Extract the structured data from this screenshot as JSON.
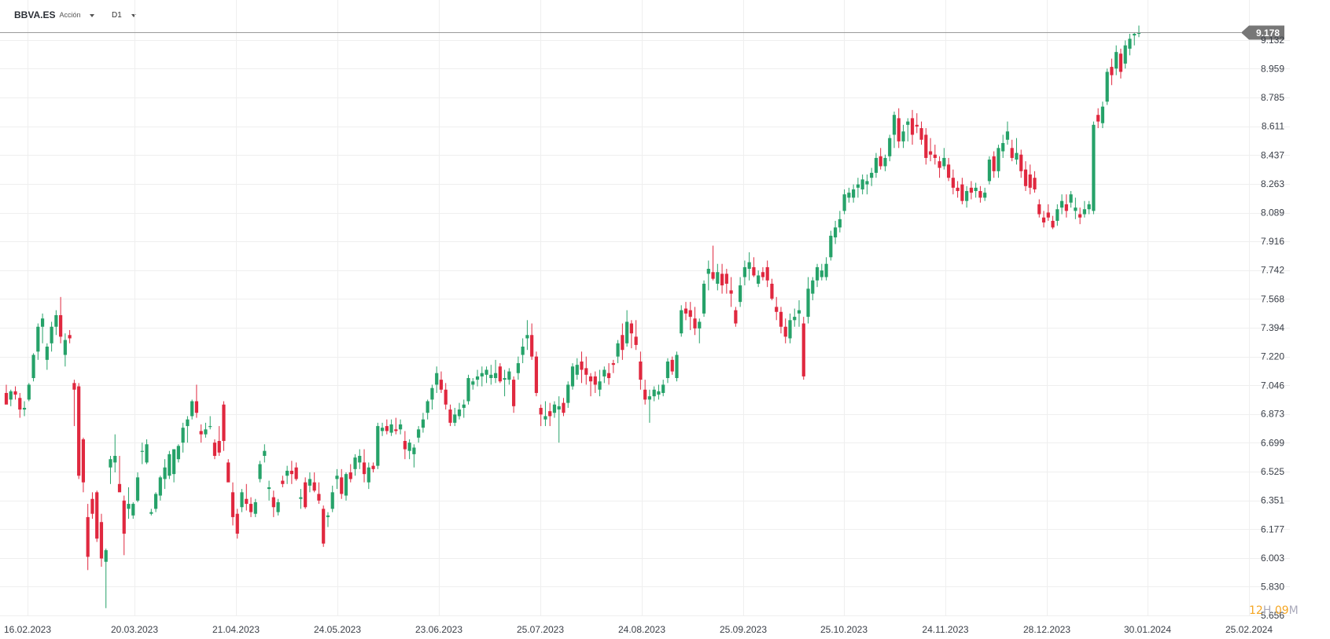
{
  "toolbar": {
    "symbol": "BBVA.ES",
    "asset_type": "Acción",
    "timeframe": "D1"
  },
  "countdown": {
    "hours": "12",
    "hours_unit": "H",
    "minutes": "09",
    "minutes_unit": "M"
  },
  "colors": {
    "up": "#26a269",
    "down": "#e0283f",
    "grid": "#efefef",
    "price_line": "#9a9a9a",
    "price_badge": "#777777"
  },
  "chart_data": {
    "type": "candlestick",
    "symbol": "BBVA.ES",
    "timeframe": "D1",
    "ylim": [
      5.656,
      9.22
    ],
    "y_ticks": [
      "9.132",
      "8.959",
      "8.785",
      "8.611",
      "8.437",
      "8.263",
      "8.089",
      "7.916",
      "7.742",
      "7.568",
      "7.394",
      "7.220",
      "7.046",
      "6.873",
      "6.699",
      "6.525",
      "6.351",
      "6.177",
      "6.003",
      "5.830",
      "5.656"
    ],
    "x_ticks": [
      "16.02.2023",
      "20.03.2023",
      "21.04.2023",
      "24.05.2023",
      "23.06.2023",
      "25.07.2023",
      "24.08.2023",
      "25.09.2023",
      "25.10.2023",
      "24.11.2023",
      "28.12.2023",
      "30.01.2024",
      "25.02.2024"
    ],
    "current_price": "9.178",
    "grid": true,
    "candles": [
      [
        7.0,
        7.05,
        6.94,
        6.93
      ],
      [
        6.96,
        7.02,
        6.92,
        7.01
      ],
      [
        7.01,
        7.04,
        6.96,
        6.99
      ],
      [
        6.97,
        7.0,
        6.85,
        6.9
      ],
      [
        6.9,
        6.95,
        6.86,
        6.91
      ],
      [
        6.96,
        7.06,
        6.95,
        7.05
      ],
      [
        7.09,
        7.24,
        7.07,
        7.23
      ],
      [
        7.25,
        7.42,
        7.2,
        7.4
      ],
      [
        7.4,
        7.48,
        7.3,
        7.45
      ],
      [
        7.2,
        7.3,
        7.14,
        7.28
      ],
      [
        7.3,
        7.43,
        7.25,
        7.4
      ],
      [
        7.4,
        7.5,
        7.35,
        7.47
      ],
      [
        7.47,
        7.58,
        7.3,
        7.34
      ],
      [
        7.23,
        7.36,
        7.16,
        7.32
      ],
      [
        7.35,
        7.38,
        7.3,
        7.33
      ],
      [
        7.06,
        7.08,
        6.8,
        7.02
      ],
      [
        7.04,
        7.06,
        6.48,
        6.5
      ],
      [
        6.72,
        6.73,
        6.4,
        6.46
      ],
      [
        6.25,
        6.33,
        5.93,
        6.01
      ],
      [
        6.36,
        6.4,
        6.24,
        6.27
      ],
      [
        6.4,
        6.41,
        6.1,
        6.12
      ],
      [
        6.22,
        6.27,
        5.95,
        6.0
      ],
      [
        5.98,
        6.06,
        5.7,
        6.05
      ],
      [
        6.55,
        6.62,
        6.45,
        6.6
      ],
      [
        6.58,
        6.75,
        6.52,
        6.62
      ],
      [
        6.45,
        6.62,
        6.42,
        6.4
      ],
      [
        6.35,
        6.38,
        6.02,
        6.15
      ],
      [
        6.3,
        6.43,
        6.24,
        6.33
      ],
      [
        6.26,
        6.34,
        6.24,
        6.33
      ],
      [
        6.35,
        6.52,
        6.34,
        6.49
      ],
      [
        6.65,
        6.7,
        6.57,
        6.65
      ],
      [
        6.58,
        6.72,
        6.57,
        6.69
      ],
      [
        6.27,
        6.3,
        6.26,
        6.28
      ],
      [
        6.3,
        6.4,
        6.28,
        6.39
      ],
      [
        6.38,
        6.5,
        6.35,
        6.49
      ],
      [
        6.48,
        6.6,
        6.42,
        6.55
      ],
      [
        6.5,
        6.65,
        6.48,
        6.63
      ],
      [
        6.51,
        6.66,
        6.46,
        6.66
      ],
      [
        6.6,
        6.69,
        6.58,
        6.68
      ],
      [
        6.7,
        6.82,
        6.64,
        6.79
      ],
      [
        6.8,
        6.86,
        6.7,
        6.84
      ],
      [
        6.86,
        6.96,
        6.84,
        6.95
      ],
      [
        6.95,
        7.05,
        6.85,
        6.88
      ],
      [
        6.77,
        6.81,
        6.7,
        6.75
      ],
      [
        6.75,
        6.82,
        6.73,
        6.78
      ],
      [
        6.8,
        6.86,
        6.78,
        6.8
      ],
      [
        6.7,
        6.72,
        6.6,
        6.62
      ],
      [
        6.71,
        6.8,
        6.62,
        6.64
      ],
      [
        6.93,
        6.95,
        6.65,
        6.71
      ],
      [
        6.58,
        6.6,
        6.48,
        6.46
      ],
      [
        6.4,
        6.46,
        6.2,
        6.25
      ],
      [
        6.27,
        6.3,
        6.12,
        6.15
      ],
      [
        6.31,
        6.42,
        6.28,
        6.4
      ],
      [
        6.36,
        6.45,
        6.29,
        6.33
      ],
      [
        6.33,
        6.37,
        6.25,
        6.28
      ],
      [
        6.27,
        6.36,
        6.25,
        6.34
      ],
      [
        6.48,
        6.59,
        6.46,
        6.57
      ],
      [
        6.62,
        6.69,
        6.58,
        6.65
      ],
      [
        6.42,
        6.47,
        6.35,
        6.43
      ],
      [
        6.37,
        6.41,
        6.25,
        6.31
      ],
      [
        6.28,
        6.36,
        6.26,
        6.34
      ],
      [
        6.47,
        6.5,
        6.43,
        6.45
      ],
      [
        6.5,
        6.56,
        6.45,
        6.53
      ],
      [
        6.53,
        6.59,
        6.45,
        6.51
      ],
      [
        6.55,
        6.58,
        6.47,
        6.48
      ],
      [
        6.36,
        6.42,
        6.3,
        6.37
      ],
      [
        6.46,
        6.49,
        6.3,
        6.31
      ],
      [
        6.44,
        6.52,
        6.4,
        6.48
      ],
      [
        6.46,
        6.52,
        6.4,
        6.41
      ],
      [
        6.39,
        6.46,
        6.33,
        6.35
      ],
      [
        6.3,
        6.32,
        6.07,
        6.09
      ],
      [
        6.25,
        6.28,
        6.19,
        6.26
      ],
      [
        6.3,
        6.44,
        6.28,
        6.4
      ],
      [
        6.48,
        6.54,
        6.42,
        6.5
      ],
      [
        6.49,
        6.54,
        6.36,
        6.39
      ],
      [
        6.38,
        6.52,
        6.35,
        6.51
      ],
      [
        6.52,
        6.57,
        6.46,
        6.48
      ],
      [
        6.54,
        6.63,
        6.5,
        6.61
      ],
      [
        6.58,
        6.66,
        6.54,
        6.62
      ],
      [
        6.58,
        6.66,
        6.46,
        6.51
      ],
      [
        6.46,
        6.58,
        6.42,
        6.55
      ],
      [
        6.56,
        6.58,
        6.52,
        6.54
      ],
      [
        6.56,
        6.82,
        6.54,
        6.8
      ],
      [
        6.77,
        6.82,
        6.74,
        6.79
      ],
      [
        6.8,
        6.84,
        6.75,
        6.77
      ],
      [
        6.76,
        6.84,
        6.74,
        6.81
      ],
      [
        6.78,
        6.85,
        6.75,
        6.77
      ],
      [
        6.78,
        6.84,
        6.75,
        6.81
      ],
      [
        6.71,
        6.77,
        6.6,
        6.66
      ],
      [
        6.65,
        6.72,
        6.6,
        6.7
      ],
      [
        6.63,
        6.69,
        6.55,
        6.67
      ],
      [
        6.73,
        6.8,
        6.7,
        6.78
      ],
      [
        6.79,
        6.88,
        6.76,
        6.84
      ],
      [
        6.88,
        6.96,
        6.84,
        6.95
      ],
      [
        6.96,
        7.05,
        6.9,
        7.03
      ],
      [
        7.05,
        7.16,
        7.0,
        7.12
      ],
      [
        7.08,
        7.13,
        7.0,
        7.02
      ],
      [
        7.02,
        7.06,
        6.9,
        6.93
      ],
      [
        6.9,
        6.93,
        6.8,
        6.82
      ],
      [
        6.82,
        6.91,
        6.8,
        6.87
      ],
      [
        6.86,
        6.94,
        6.84,
        6.9
      ],
      [
        6.91,
        6.96,
        6.85,
        6.93
      ],
      [
        6.95,
        7.11,
        6.93,
        7.09
      ],
      [
        7.05,
        7.09,
        7.02,
        7.07
      ],
      [
        7.08,
        7.14,
        7.04,
        7.1
      ],
      [
        7.1,
        7.16,
        7.04,
        7.12
      ],
      [
        7.11,
        7.16,
        7.06,
        7.14
      ],
      [
        7.09,
        7.17,
        7.05,
        7.11
      ],
      [
        7.09,
        7.2,
        7.06,
        7.12
      ],
      [
        7.16,
        7.18,
        7.06,
        7.07
      ],
      [
        7.08,
        7.14,
        6.98,
        7.09
      ],
      [
        7.08,
        7.15,
        7.05,
        7.13
      ],
      [
        7.08,
        7.1,
        6.88,
        6.92
      ],
      [
        7.12,
        7.22,
        7.08,
        7.18
      ],
      [
        7.23,
        7.33,
        7.18,
        7.28
      ],
      [
        7.33,
        7.44,
        7.26,
        7.35
      ],
      [
        7.35,
        7.42,
        7.2,
        7.22
      ],
      [
        7.22,
        7.25,
        6.98,
        7.0
      ],
      [
        6.91,
        6.93,
        6.8,
        6.87
      ],
      [
        6.84,
        6.95,
        6.8,
        6.86
      ],
      [
        6.89,
        6.94,
        6.8,
        6.86
      ],
      [
        6.88,
        6.95,
        6.85,
        6.93
      ],
      [
        6.9,
        6.98,
        6.7,
        6.92
      ],
      [
        6.94,
        6.97,
        6.86,
        6.88
      ],
      [
        6.94,
        7.07,
        6.91,
        7.05
      ],
      [
        7.04,
        7.18,
        7.02,
        7.16
      ],
      [
        7.11,
        7.21,
        7.08,
        7.17
      ],
      [
        7.19,
        7.25,
        7.06,
        7.14
      ],
      [
        7.15,
        7.22,
        7.05,
        7.11
      ],
      [
        7.1,
        7.12,
        6.98,
        7.07
      ],
      [
        7.1,
        7.13,
        7.0,
        7.05
      ],
      [
        7.02,
        7.14,
        6.98,
        7.07
      ],
      [
        7.1,
        7.16,
        7.06,
        7.14
      ],
      [
        7.12,
        7.18,
        7.05,
        7.09
      ],
      [
        7.18,
        7.2,
        7.12,
        7.17
      ],
      [
        7.22,
        7.32,
        7.18,
        7.3
      ],
      [
        7.35,
        7.42,
        7.2,
        7.26
      ],
      [
        7.3,
        7.5,
        7.28,
        7.43
      ],
      [
        7.42,
        7.44,
        7.27,
        7.36
      ],
      [
        7.34,
        7.44,
        7.26,
        7.29
      ],
      [
        7.19,
        7.25,
        7.02,
        7.08
      ],
      [
        7.02,
        7.08,
        6.93,
        6.96
      ],
      [
        6.96,
        7.02,
        6.82,
        6.98
      ],
      [
        6.98,
        7.04,
        6.95,
        7.02
      ],
      [
        6.99,
        7.05,
        6.96,
        7.01
      ],
      [
        7.0,
        7.08,
        6.98,
        7.05
      ],
      [
        7.09,
        7.21,
        7.06,
        7.19
      ],
      [
        7.2,
        7.22,
        7.11,
        7.13
      ],
      [
        7.09,
        7.25,
        7.07,
        7.23
      ],
      [
        7.36,
        7.53,
        7.34,
        7.5
      ],
      [
        7.51,
        7.55,
        7.44,
        7.48
      ],
      [
        7.5,
        7.55,
        7.38,
        7.46
      ],
      [
        7.45,
        7.52,
        7.35,
        7.39
      ],
      [
        7.39,
        7.45,
        7.3,
        7.43
      ],
      [
        7.48,
        7.68,
        7.46,
        7.66
      ],
      [
        7.72,
        7.8,
        7.62,
        7.75
      ],
      [
        7.73,
        7.89,
        7.68,
        7.69
      ],
      [
        7.66,
        7.78,
        7.62,
        7.73
      ],
      [
        7.72,
        7.78,
        7.6,
        7.65
      ],
      [
        7.72,
        7.75,
        7.6,
        7.66
      ],
      [
        7.62,
        7.7,
        7.52,
        7.6
      ],
      [
        7.5,
        7.52,
        7.4,
        7.42
      ],
      [
        7.55,
        7.7,
        7.52,
        7.65
      ],
      [
        7.7,
        7.8,
        7.65,
        7.76
      ],
      [
        7.75,
        7.85,
        7.68,
        7.79
      ],
      [
        7.76,
        7.82,
        7.7,
        7.71
      ],
      [
        7.66,
        7.74,
        7.64,
        7.71
      ],
      [
        7.73,
        7.76,
        7.68,
        7.7
      ],
      [
        7.76,
        7.8,
        7.64,
        7.68
      ],
      [
        7.66,
        7.69,
        7.56,
        7.57
      ],
      [
        7.52,
        7.58,
        7.44,
        7.49
      ],
      [
        7.49,
        7.52,
        7.36,
        7.4
      ],
      [
        7.4,
        7.45,
        7.3,
        7.34
      ],
      [
        7.33,
        7.48,
        7.3,
        7.44
      ],
      [
        7.44,
        7.51,
        7.4,
        7.46
      ],
      [
        7.48,
        7.56,
        7.4,
        7.5
      ],
      [
        7.42,
        7.46,
        7.08,
        7.1
      ],
      [
        7.46,
        7.7,
        7.42,
        7.63
      ],
      [
        7.6,
        7.7,
        7.56,
        7.68
      ],
      [
        7.68,
        7.78,
        7.64,
        7.76
      ],
      [
        7.7,
        7.78,
        7.68,
        7.74
      ],
      [
        7.7,
        7.82,
        7.68,
        7.78
      ],
      [
        7.82,
        7.98,
        7.8,
        7.95
      ],
      [
        7.94,
        8.04,
        7.9,
        8.0
      ],
      [
        8.0,
        8.1,
        7.97,
        8.05
      ],
      [
        8.1,
        8.23,
        8.08,
        8.2
      ],
      [
        8.18,
        8.24,
        8.15,
        8.21
      ],
      [
        8.18,
        8.26,
        8.15,
        8.23
      ],
      [
        8.24,
        8.3,
        8.18,
        8.26
      ],
      [
        8.23,
        8.32,
        8.2,
        8.29
      ],
      [
        8.26,
        8.32,
        8.2,
        8.28
      ],
      [
        8.3,
        8.36,
        8.25,
        8.33
      ],
      [
        8.33,
        8.45,
        8.3,
        8.42
      ],
      [
        8.43,
        8.48,
        8.35,
        8.37
      ],
      [
        8.37,
        8.44,
        8.34,
        8.42
      ],
      [
        8.43,
        8.56,
        8.4,
        8.54
      ],
      [
        8.56,
        8.7,
        8.48,
        8.68
      ],
      [
        8.66,
        8.72,
        8.48,
        8.52
      ],
      [
        8.52,
        8.62,
        8.48,
        8.58
      ],
      [
        8.62,
        8.66,
        8.52,
        8.64
      ],
      [
        8.66,
        8.71,
        8.5,
        8.56
      ],
      [
        8.62,
        8.69,
        8.57,
        8.61
      ],
      [
        8.6,
        8.64,
        8.5,
        8.53
      ],
      [
        8.56,
        8.6,
        8.38,
        8.42
      ],
      [
        8.46,
        8.54,
        8.4,
        8.44
      ],
      [
        8.44,
        8.5,
        8.38,
        8.42
      ],
      [
        8.4,
        8.43,
        8.3,
        8.36
      ],
      [
        8.37,
        8.48,
        8.35,
        8.42
      ],
      [
        8.38,
        8.42,
        8.28,
        8.3
      ],
      [
        8.3,
        8.35,
        8.2,
        8.24
      ],
      [
        8.24,
        8.28,
        8.18,
        8.22
      ],
      [
        8.26,
        8.3,
        8.14,
        8.16
      ],
      [
        8.16,
        8.25,
        8.12,
        8.22
      ],
      [
        8.24,
        8.28,
        8.17,
        8.21
      ],
      [
        8.22,
        8.27,
        8.18,
        8.24
      ],
      [
        8.22,
        8.25,
        8.15,
        8.18
      ],
      [
        8.18,
        8.24,
        8.16,
        8.21
      ],
      [
        8.28,
        8.43,
        8.26,
        8.41
      ],
      [
        8.43,
        8.46,
        8.3,
        8.34
      ],
      [
        8.34,
        8.5,
        8.3,
        8.48
      ],
      [
        8.46,
        8.56,
        8.42,
        8.51
      ],
      [
        8.53,
        8.64,
        8.5,
        8.58
      ],
      [
        8.48,
        8.53,
        8.4,
        8.42
      ],
      [
        8.41,
        8.54,
        8.38,
        8.45
      ],
      [
        8.44,
        8.47,
        8.3,
        8.34
      ],
      [
        8.35,
        8.4,
        8.22,
        8.25
      ],
      [
        8.32,
        8.38,
        8.2,
        8.24
      ],
      [
        8.3,
        8.34,
        8.21,
        8.23
      ],
      [
        8.14,
        8.17,
        8.06,
        8.08
      ],
      [
        8.06,
        8.1,
        8.0,
        8.03
      ],
      [
        8.09,
        8.14,
        8.04,
        8.06
      ],
      [
        8.04,
        8.07,
        7.99,
        8.0
      ],
      [
        8.04,
        8.14,
        8.01,
        8.11
      ],
      [
        8.12,
        8.2,
        8.08,
        8.16
      ],
      [
        8.14,
        8.2,
        8.06,
        8.1
      ],
      [
        8.15,
        8.22,
        8.12,
        8.2
      ],
      [
        8.1,
        8.18,
        8.05,
        8.12
      ],
      [
        8.08,
        8.12,
        8.02,
        8.06
      ],
      [
        8.08,
        8.16,
        8.06,
        8.11
      ],
      [
        8.11,
        8.16,
        8.08,
        8.14
      ],
      [
        8.1,
        8.64,
        8.08,
        8.62
      ],
      [
        8.68,
        8.72,
        8.6,
        8.64
      ],
      [
        8.63,
        8.76,
        8.6,
        8.73
      ],
      [
        8.76,
        8.96,
        8.74,
        8.94
      ],
      [
        8.97,
        9.02,
        8.86,
        8.92
      ],
      [
        8.96,
        9.1,
        8.92,
        9.06
      ],
      [
        9.05,
        9.08,
        8.9,
        8.94
      ],
      [
        8.99,
        9.13,
        8.96,
        9.1
      ],
      [
        9.08,
        9.17,
        9.04,
        9.14
      ],
      [
        9.16,
        9.18,
        9.1,
        9.17
      ],
      [
        9.17,
        9.22,
        9.15,
        9.178
      ]
    ]
  }
}
